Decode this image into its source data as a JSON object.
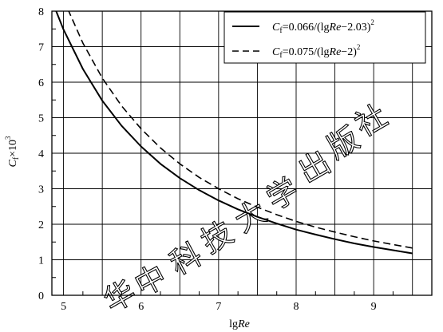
{
  "chart_data": {
    "type": "line",
    "xlabel": "lgRe",
    "ylabel": "Cf×10³",
    "xlim": [
      4.85,
      9.75
    ],
    "ylim": [
      0,
      8
    ],
    "x_ticks": [
      "5",
      "6",
      "7",
      "8",
      "9"
    ],
    "y_ticks": [
      "0",
      "1",
      "2",
      "3",
      "4",
      "5",
      "6",
      "7",
      "8"
    ],
    "grid": true,
    "legend_position": "top-right",
    "series": [
      {
        "name": "Cf=0.066/(lgRe−2.03)²",
        "style": "solid",
        "x": [
          4.85,
          5.0,
          5.25,
          5.5,
          5.75,
          6.0,
          6.25,
          6.5,
          6.75,
          7.0,
          7.25,
          7.5,
          7.75,
          8.0,
          8.25,
          8.5,
          8.75,
          9.0,
          9.25,
          9.5
        ],
        "y": [
          8.3,
          7.48,
          6.37,
          5.48,
          4.77,
          4.19,
          3.7,
          3.3,
          2.96,
          2.67,
          2.42,
          2.21,
          2.02,
          1.85,
          1.71,
          1.58,
          1.46,
          1.36,
          1.27,
          1.18
        ]
      },
      {
        "name": "Cf=0.075/(lgRe−2)²",
        "style": "dashed",
        "x": [
          4.85,
          5.0,
          5.25,
          5.5,
          5.75,
          6.0,
          6.25,
          6.5,
          6.75,
          7.0,
          7.25,
          7.5,
          7.75,
          8.0,
          8.25,
          8.5,
          8.75,
          9.0,
          9.25,
          9.5
        ],
        "y": [
          9.23,
          8.33,
          7.1,
          6.12,
          5.33,
          4.69,
          4.15,
          3.7,
          3.32,
          3.0,
          2.72,
          2.48,
          2.27,
          2.08,
          1.92,
          1.78,
          1.65,
          1.53,
          1.43,
          1.33
        ]
      }
    ]
  },
  "legend": {
    "entry1": {
      "prefix": "C",
      "sub": "f",
      "formula": "=0.066/(lg",
      "re": "Re",
      "tail": "−2.03)",
      "sup": "2"
    },
    "entry2": {
      "prefix": "C",
      "sub": "f",
      "formula": "=0.075/(lg",
      "re": "Re",
      "tail": "−2)",
      "sup": "2"
    }
  },
  "axes": {
    "x": {
      "pre": "lg",
      "italic": "Re"
    },
    "y": {
      "italic": "C",
      "sub": "f",
      "mid": "×10",
      "sup": "3"
    }
  },
  "watermark": [
    "华",
    "中",
    "科",
    "技",
    "大",
    "学",
    "出",
    "版",
    "社"
  ]
}
